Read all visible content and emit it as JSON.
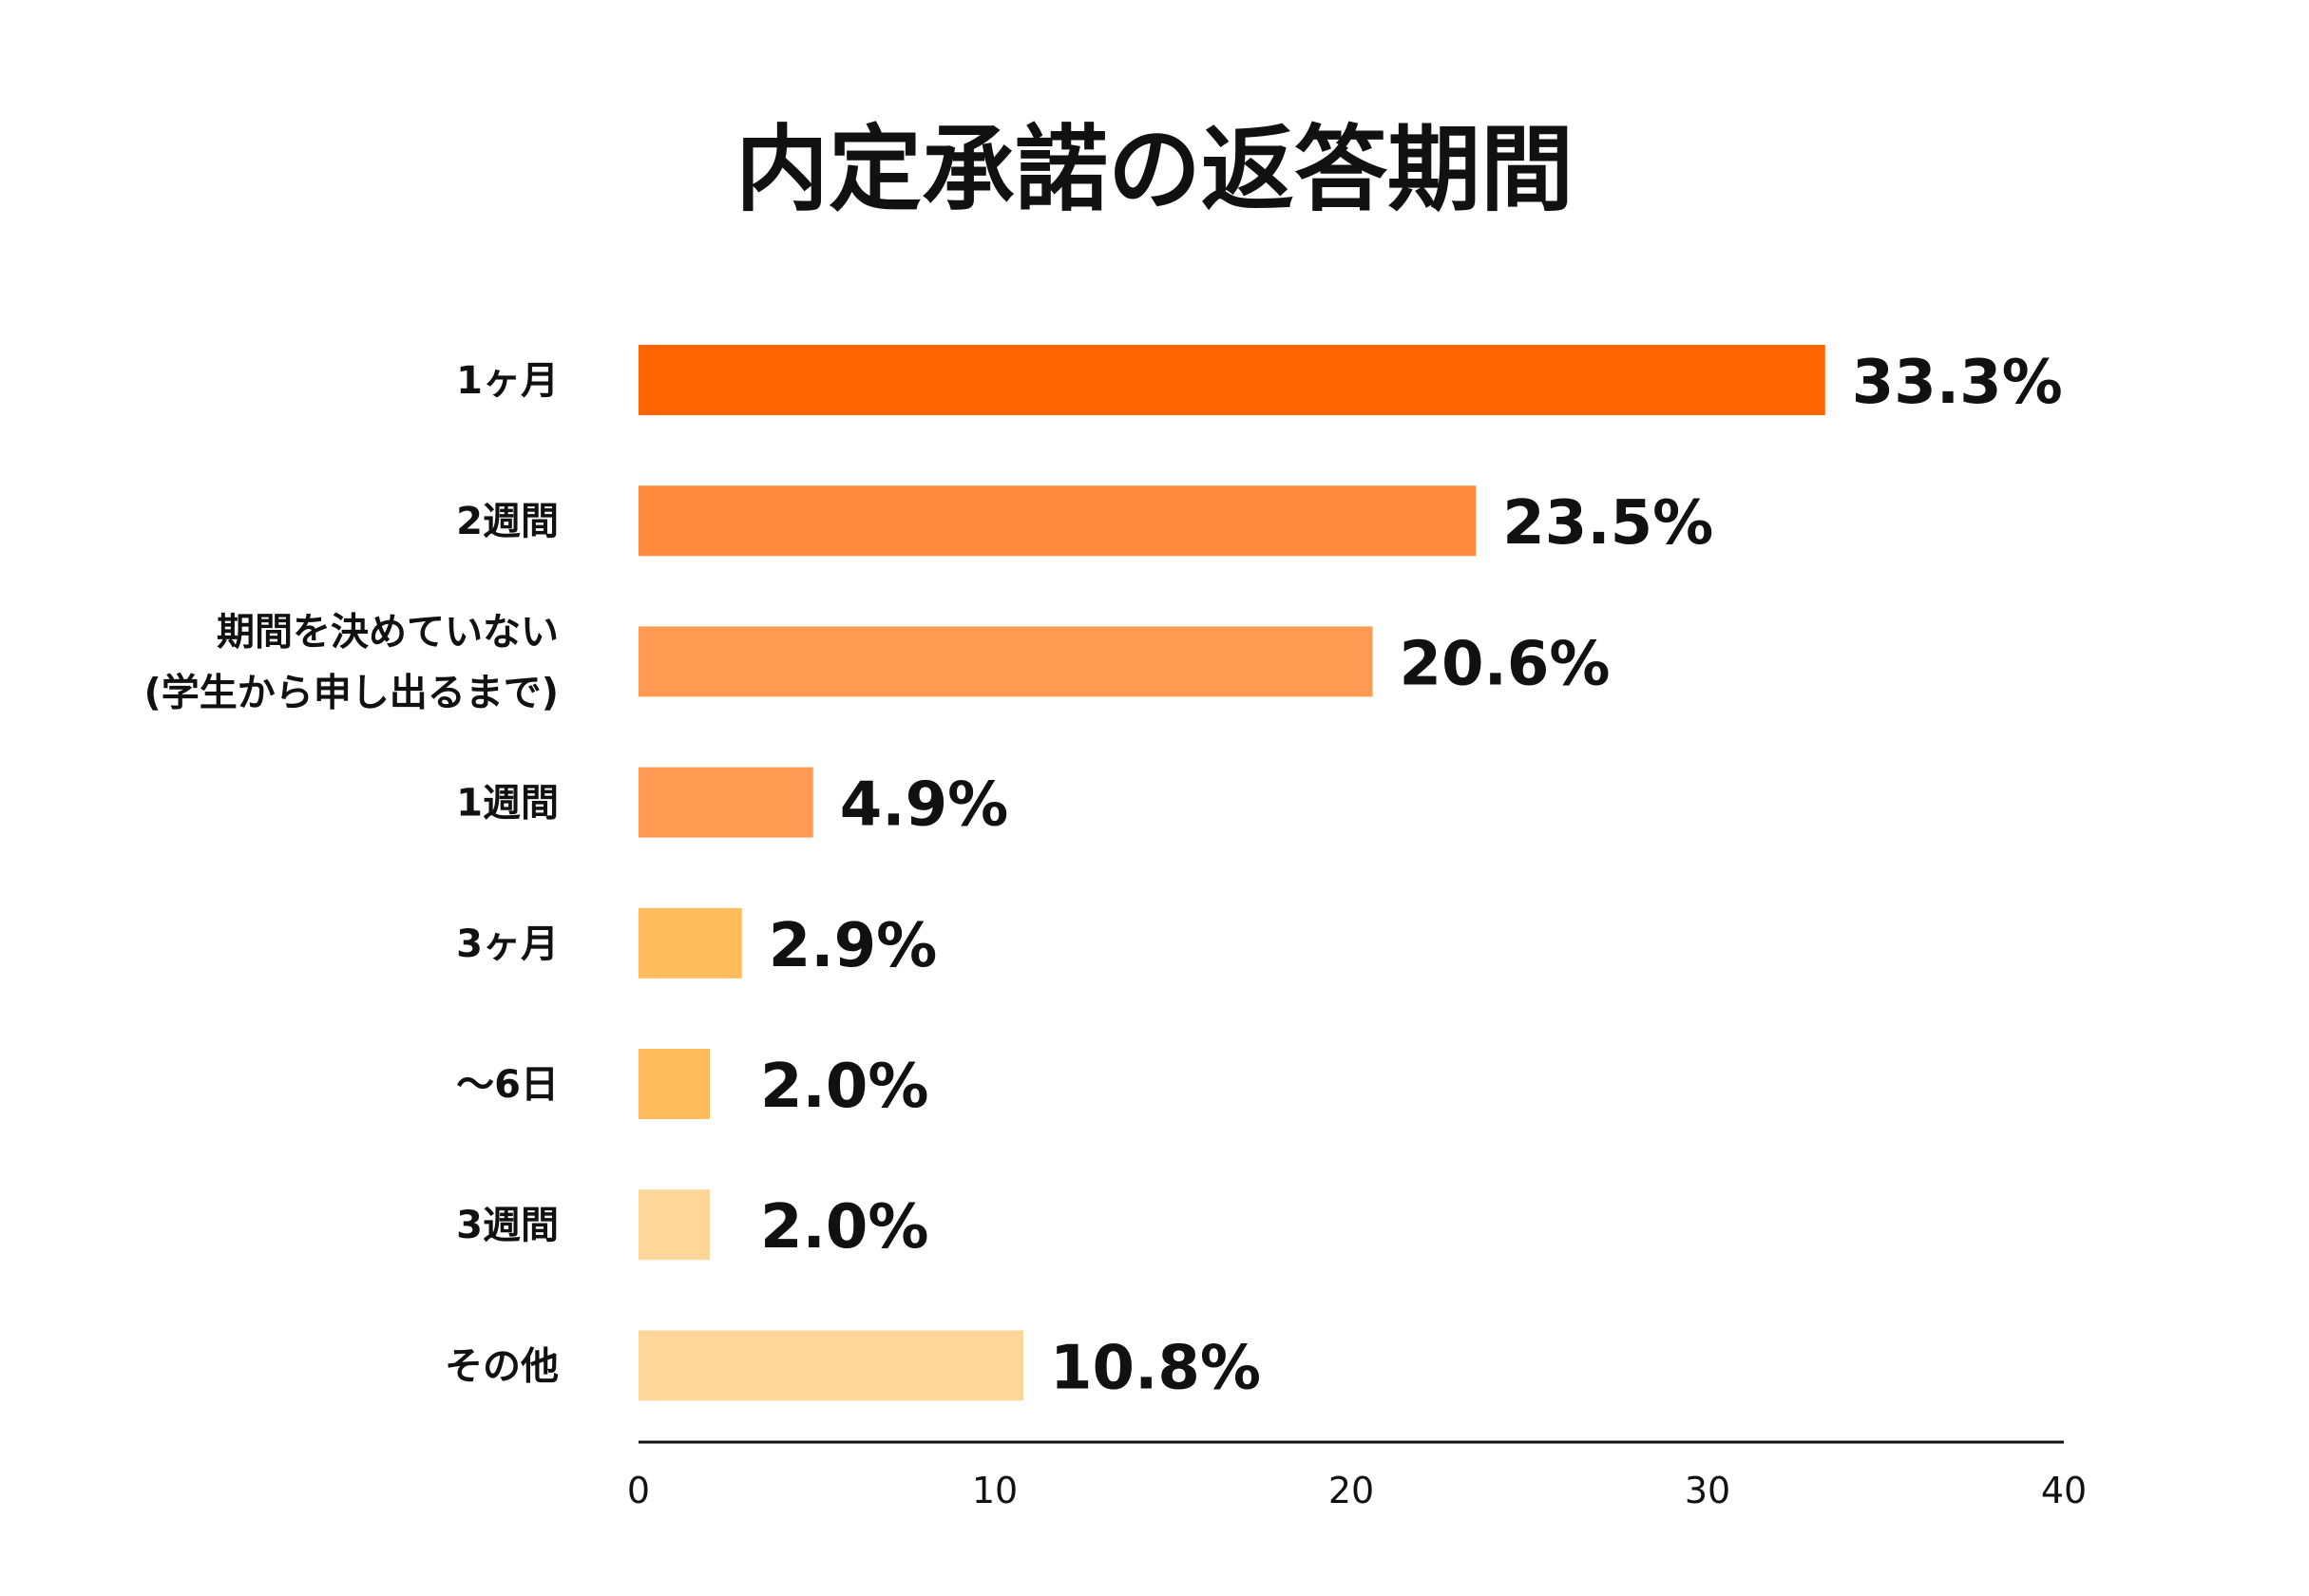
{
  "chart_data": {
    "type": "bar",
    "orientation": "horizontal",
    "title": "内定承諾の返答期間",
    "categories": [
      [
        "1ヶ月"
      ],
      [
        "2週間"
      ],
      [
        "期間を決めていない",
        "(学生から申し出るまで)"
      ],
      [
        "1週間"
      ],
      [
        "3ヶ月"
      ],
      [
        "～6日"
      ],
      [
        "3週間"
      ],
      [
        "その他"
      ]
    ],
    "values": [
      33.3,
      23.5,
      20.6,
      4.9,
      2.9,
      2.0,
      2.0,
      10.8
    ],
    "value_labels": [
      "33.3%",
      "23.5%",
      "20.6%",
      "4.9%",
      "2.9%",
      "2.0%",
      "2.0%",
      "10.8%"
    ],
    "bar_colors": [
      "#ff6400",
      "#ff8a3d",
      "#ff9a52",
      "#ff9a52",
      "#ffbb5c",
      "#ffbb5c",
      "#fed699",
      "#fed699"
    ],
    "xlim": [
      0,
      40
    ],
    "xticks": [
      0,
      10,
      20,
      30,
      40
    ],
    "grid": false,
    "legend": "none"
  }
}
